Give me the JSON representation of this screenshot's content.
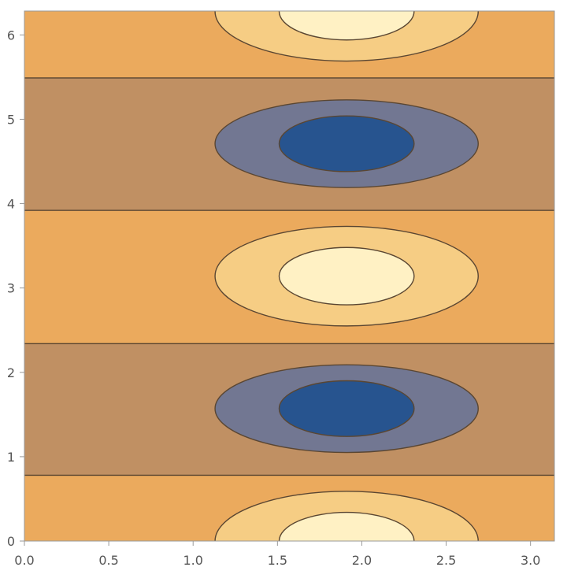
{
  "chart_data": {
    "type": "contour",
    "title": "",
    "xlabel": "",
    "ylabel": "",
    "xlim": [
      0,
      3.14159
    ],
    "ylim": [
      0,
      6.28319
    ],
    "x_ticks": [
      0.0,
      0.5,
      1.0,
      1.5,
      2.0,
      2.5,
      3.0
    ],
    "y_ticks": [
      0,
      1,
      2,
      3,
      4,
      5,
      6
    ],
    "x_tick_labels": [
      "0.0",
      "0.5",
      "1.0",
      "1.5",
      "2.0",
      "2.5",
      "3.0"
    ],
    "y_tick_labels": [
      "0",
      "1",
      "2",
      "3",
      "4",
      "5",
      "6"
    ],
    "grid": false,
    "legend": "none",
    "bands": [
      {
        "level": "lowest",
        "color": "#27548f"
      },
      {
        "level": "low",
        "color": "#727792"
      },
      {
        "level": "mid-low",
        "color": "#c09063"
      },
      {
        "level": "mid-high",
        "color": "#ebaa5d"
      },
      {
        "level": "high",
        "color": "#f6cd84"
      },
      {
        "level": "highest",
        "color": "#fff1c4"
      }
    ],
    "contour_line_color": "#5a4632",
    "regions": [
      {
        "kind": "horizontal-band",
        "color_level": "mid-low",
        "y_range": [
          0.78,
          2.34
        ]
      },
      {
        "kind": "horizontal-band",
        "color_level": "mid-low",
        "y_range": [
          3.92,
          5.49
        ]
      },
      {
        "kind": "ellipse",
        "color_level": "low",
        "cx": 1.91,
        "cy": 1.57,
        "rx": 0.78,
        "ry": 0.52
      },
      {
        "kind": "ellipse",
        "color_level": "lowest",
        "cx": 1.91,
        "cy": 1.57,
        "rx": 0.4,
        "ry": 0.33
      },
      {
        "kind": "ellipse",
        "color_level": "low",
        "cx": 1.91,
        "cy": 4.71,
        "rx": 0.78,
        "ry": 0.52
      },
      {
        "kind": "ellipse",
        "color_level": "lowest",
        "cx": 1.91,
        "cy": 4.71,
        "rx": 0.4,
        "ry": 0.33
      },
      {
        "kind": "ellipse",
        "color_level": "high",
        "cx": 1.91,
        "cy": 3.14,
        "rx": 0.78,
        "ry": 0.59
      },
      {
        "kind": "ellipse",
        "color_level": "highest",
        "cx": 1.91,
        "cy": 3.14,
        "rx": 0.4,
        "ry": 0.34
      },
      {
        "kind": "ellipse",
        "color_level": "high",
        "cx": 1.91,
        "cy": 0.0,
        "rx": 0.78,
        "ry": 0.59
      },
      {
        "kind": "ellipse",
        "color_level": "highest",
        "cx": 1.91,
        "cy": 0.0,
        "rx": 0.4,
        "ry": 0.34
      },
      {
        "kind": "ellipse",
        "color_level": "high",
        "cx": 1.91,
        "cy": 6.28,
        "rx": 0.78,
        "ry": 0.59
      },
      {
        "kind": "ellipse",
        "color_level": "highest",
        "cx": 1.91,
        "cy": 6.28,
        "rx": 0.4,
        "ry": 0.34
      }
    ]
  }
}
